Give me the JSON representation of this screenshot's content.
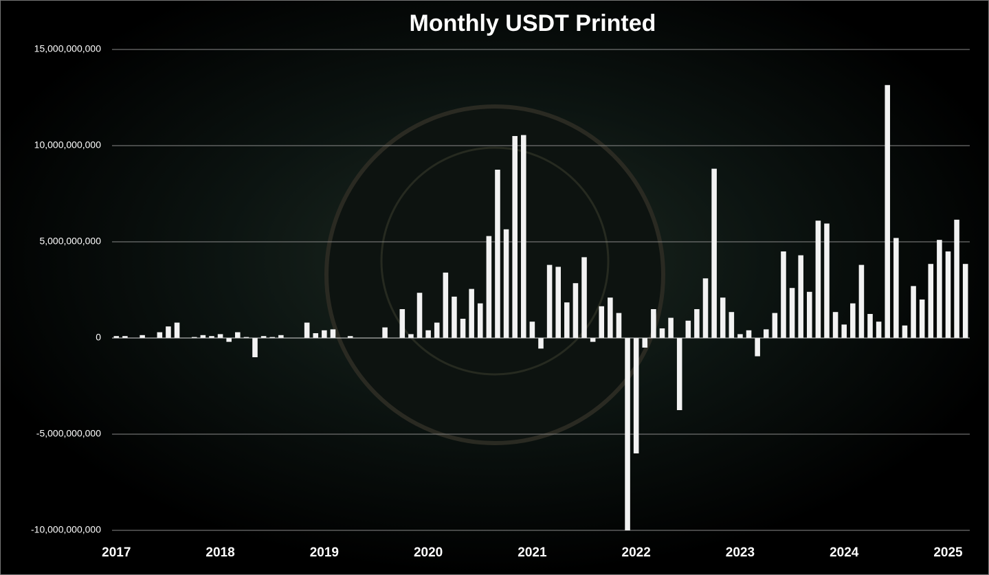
{
  "chart_data": {
    "type": "bar",
    "title": "Monthly USDT Printed",
    "categories": [
      "2017",
      null,
      null,
      null,
      null,
      null,
      null,
      null,
      null,
      null,
      null,
      null,
      "2018",
      null,
      null,
      null,
      null,
      null,
      null,
      null,
      null,
      null,
      null,
      null,
      "2019",
      null,
      null,
      null,
      null,
      null,
      null,
      null,
      null,
      null,
      null,
      null,
      "2020",
      null,
      null,
      null,
      null,
      null,
      null,
      null,
      null,
      null,
      null,
      null,
      "2021",
      null,
      null,
      null,
      null,
      null,
      null,
      null,
      null,
      null,
      null,
      null,
      "2022",
      null,
      null,
      null,
      null,
      null,
      null,
      null,
      null,
      null,
      null,
      null,
      "2023",
      null,
      null,
      null,
      null,
      null,
      null,
      null,
      null,
      null,
      null,
      null,
      "2024",
      null,
      null,
      null,
      null,
      null,
      null,
      null,
      null,
      null,
      null,
      null,
      "2025",
      null,
      null
    ],
    "values": [
      100000000,
      100000000,
      0,
      150000000,
      0,
      300000000,
      600000000,
      800000000,
      0,
      50000000,
      150000000,
      100000000,
      200000000,
      -200000000,
      300000000,
      50000000,
      -1000000000,
      100000000,
      50000000,
      150000000,
      0,
      0,
      800000000,
      250000000,
      400000000,
      450000000,
      0,
      100000000,
      0,
      0,
      0,
      550000000,
      0,
      1500000000,
      200000000,
      2350000000,
      400000000,
      800000000,
      3400000000,
      2150000000,
      1000000000,
      2550000000,
      1800000000,
      5300000000,
      8750000000,
      5650000000,
      10500000000,
      10550000000,
      850000000,
      -550000000,
      3800000000,
      3700000000,
      1850000000,
      2850000000,
      4200000000,
      -200000000,
      1650000000,
      2100000000,
      1300000000,
      -10000000000,
      -6000000000,
      -500000000,
      1500000000,
      500000000,
      1050000000,
      -3750000000,
      900000000,
      1500000000,
      3100000000,
      8800000000,
      2100000000,
      1350000000,
      200000000,
      400000000,
      -950000000,
      450000000,
      1300000000,
      4500000000,
      2600000000,
      4300000000,
      2400000000,
      6100000000,
      5950000000,
      1350000000,
      700000000,
      1800000000,
      3800000000,
      1250000000,
      850000000,
      13150000000,
      5200000000,
      650000000,
      2700000000,
      2000000000,
      3850000000,
      5100000000,
      4500000000,
      6150000000,
      3850000000
    ],
    "color": "#f2f2f2",
    "ylim": [
      -10000000000,
      15000000000
    ],
    "yticks": [
      {
        "value": -10000000000,
        "label": "-10,000,000,000"
      },
      {
        "value": -5000000000,
        "label": "-5,000,000,000"
      },
      0,
      {
        "value": 5000000000,
        "label": "5,000,000,000"
      },
      {
        "value": 10000000000,
        "label": "10,000,000,000"
      },
      {
        "value": 15000000000,
        "label": "15,000,000,000"
      }
    ],
    "grid": true
  }
}
